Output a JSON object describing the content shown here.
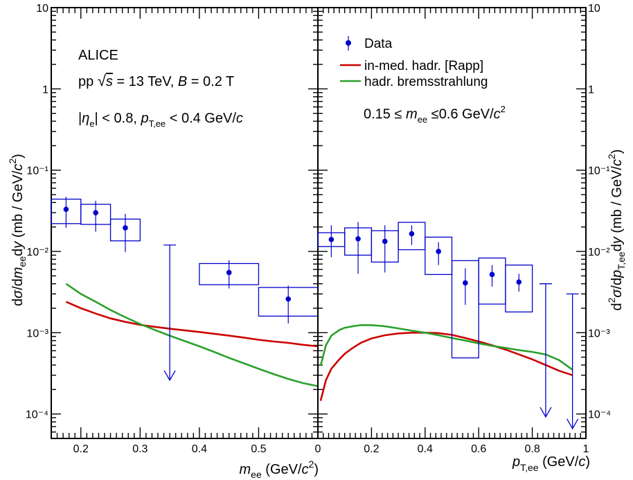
{
  "chart_data": [
    {
      "type": "scatter",
      "panel": "left",
      "title": "",
      "xlabel": "m_ee (GeV/c²)",
      "ylabel": "dσ/dm_ee dy (mb / GeV/c²)",
      "xlim": [
        0.15,
        0.6
      ],
      "ylim": [
        5e-05,
        10
      ],
      "yscale": "log",
      "x_ticks": [
        0.2,
        0.3,
        0.4,
        0.5
      ],
      "annotations": [
        "ALICE",
        "pp √s = 13 TeV, B = 0.2 T",
        "|η_e| < 0.8, p_T,ee < 0.4 GeV/c"
      ],
      "series": [
        {
          "name": "Data",
          "color": "#0000cc",
          "points": [
            {
              "x": 0.175,
              "y": 0.033,
              "stat_low": 0.0195,
              "stat_high": 0.047,
              "sys_low": 0.022,
              "sys_high": 0.044,
              "bin": [
                0.15,
                0.2
              ]
            },
            {
              "x": 0.225,
              "y": 0.03,
              "stat_low": 0.0175,
              "stat_high": 0.042,
              "sys_low": 0.0215,
              "sys_high": 0.038,
              "bin": [
                0.2,
                0.25
              ]
            },
            {
              "x": 0.275,
              "y": 0.0195,
              "stat_low": 0.0098,
              "stat_high": 0.029,
              "sys_low": 0.0135,
              "sys_high": 0.025,
              "bin": [
                0.25,
                0.3
              ]
            },
            {
              "x": 0.45,
              "y": 0.0055,
              "stat_low": 0.0035,
              "stat_high": 0.0078,
              "sys_low": 0.0039,
              "sys_high": 0.0071,
              "bin": [
                0.4,
                0.5
              ]
            },
            {
              "x": 0.55,
              "y": 0.0026,
              "stat_low": 0.0013,
              "stat_high": 0.0038,
              "sys_low": 0.0016,
              "sys_high": 0.0036,
              "bin": [
                0.5,
                0.6
              ]
            }
          ],
          "upper_limits": [
            {
              "x": 0.35,
              "y_top": 0.012,
              "y_arrow": 0.00026
            }
          ]
        },
        {
          "name": "in-med. hadr. [Rapp]",
          "color": "#cc0000",
          "x": [
            0.175,
            0.2,
            0.225,
            0.25,
            0.275,
            0.3,
            0.325,
            0.35,
            0.375,
            0.4,
            0.425,
            0.45,
            0.475,
            0.5,
            0.525,
            0.55,
            0.575,
            0.6
          ],
          "values": [
            0.0024,
            0.002,
            0.00172,
            0.0015,
            0.00136,
            0.00125,
            0.00118,
            0.00112,
            0.00107,
            0.00102,
            0.00097,
            0.00092,
            0.00087,
            0.00082,
            0.00078,
            0.00075,
            0.00071,
            0.00068
          ]
        },
        {
          "name": "hadr. bremsstrahlung",
          "color": "#2aa02a",
          "x": [
            0.175,
            0.2,
            0.225,
            0.25,
            0.275,
            0.3,
            0.325,
            0.35,
            0.375,
            0.4,
            0.425,
            0.45,
            0.475,
            0.5,
            0.525,
            0.55,
            0.575,
            0.6
          ],
          "values": [
            0.004,
            0.003,
            0.0024,
            0.0019,
            0.00155,
            0.00128,
            0.00108,
            0.00092,
            0.00079,
            0.00068,
            0.00058,
            0.00049,
            0.00042,
            0.00036,
            0.00031,
            0.00027,
            0.00024,
            0.00022
          ]
        }
      ]
    },
    {
      "type": "scatter",
      "panel": "right",
      "title": "",
      "xlabel": "p_T,ee (GeV/c)",
      "ylabel": "d²σ/dp_T,ee dy (mb / GeV/c²)",
      "xlim": [
        0,
        1
      ],
      "ylim": [
        5e-05,
        10
      ],
      "yscale": "log",
      "x_ticks": [
        0,
        0.2,
        0.4,
        0.6,
        0.8,
        1
      ],
      "annotations": [
        "0.15 ≤ m_ee ≤ 0.6 GeV/c²"
      ],
      "series": [
        {
          "name": "Data",
          "color": "#0000cc",
          "points": [
            {
              "x": 0.05,
              "y": 0.014,
              "stat_low": 0.0085,
              "stat_high": 0.021,
              "sys_low": 0.0115,
              "sys_high": 0.017,
              "bin": [
                0.0,
                0.1
              ]
            },
            {
              "x": 0.15,
              "y": 0.0143,
              "stat_low": 0.0053,
              "stat_high": 0.023,
              "sys_low": 0.009,
              "sys_high": 0.0195,
              "bin": [
                0.1,
                0.2
              ]
            },
            {
              "x": 0.25,
              "y": 0.0133,
              "stat_low": 0.0055,
              "stat_high": 0.021,
              "sys_low": 0.0074,
              "sys_high": 0.018,
              "bin": [
                0.2,
                0.3
              ]
            },
            {
              "x": 0.35,
              "y": 0.0165,
              "stat_low": 0.012,
              "stat_high": 0.021,
              "sys_low": 0.0105,
              "sys_high": 0.0228,
              "bin": [
                0.3,
                0.4
              ]
            },
            {
              "x": 0.45,
              "y": 0.01,
              "stat_low": 0.0068,
              "stat_high": 0.013,
              "sys_low": 0.0052,
              "sys_high": 0.015,
              "bin": [
                0.4,
                0.5
              ]
            },
            {
              "x": 0.55,
              "y": 0.0041,
              "stat_low": 0.0022,
              "stat_high": 0.0062,
              "sys_low": 0.00049,
              "sys_high": 0.0077,
              "bin": [
                0.5,
                0.6
              ]
            },
            {
              "x": 0.65,
              "y": 0.0052,
              "stat_low": 0.0037,
              "stat_high": 0.0068,
              "sys_low": 0.00225,
              "sys_high": 0.0083,
              "bin": [
                0.6,
                0.7
              ]
            },
            {
              "x": 0.75,
              "y": 0.0042,
              "stat_low": 0.0032,
              "stat_high": 0.0053,
              "sys_low": 0.0018,
              "sys_high": 0.0068,
              "bin": [
                0.7,
                0.8
              ]
            }
          ],
          "upper_limits": [
            {
              "x": 0.85,
              "y_top": 0.004,
              "y_arrow": 9.2e-05
            },
            {
              "x": 0.95,
              "y_top": 0.003,
              "y_arrow": 6.6e-05
            }
          ]
        },
        {
          "name": "in-med. hadr. [Rapp]",
          "color": "#cc0000",
          "x": [
            0.01,
            0.03,
            0.05,
            0.08,
            0.1,
            0.13,
            0.16,
            0.2,
            0.25,
            0.3,
            0.35,
            0.4,
            0.45,
            0.5,
            0.55,
            0.6,
            0.65,
            0.7,
            0.75,
            0.8,
            0.85,
            0.9,
            0.95
          ],
          "values": [
            0.000145,
            0.00026,
            0.00036,
            0.00047,
            0.00055,
            0.00065,
            0.00075,
            0.00085,
            0.00093,
            0.00098,
            0.001,
            0.001,
            0.00099,
            0.00094,
            0.00086,
            0.00078,
            0.0007,
            0.00062,
            0.00054,
            0.00047,
            0.0004,
            0.00034,
            0.0003
          ]
        },
        {
          "name": "hadr. bremsstrahlung",
          "color": "#2aa02a",
          "x": [
            0.01,
            0.03,
            0.05,
            0.08,
            0.1,
            0.13,
            0.16,
            0.2,
            0.25,
            0.3,
            0.35,
            0.4,
            0.45,
            0.5,
            0.55,
            0.6,
            0.65,
            0.7,
            0.75,
            0.8,
            0.85,
            0.9,
            0.95
          ],
          "values": [
            0.00039,
            0.0007,
            0.00092,
            0.00108,
            0.00115,
            0.0012,
            0.00124,
            0.00124,
            0.0012,
            0.00113,
            0.00106,
            0.001,
            0.00093,
            0.00086,
            0.0008,
            0.00074,
            0.00069,
            0.00065,
            0.00061,
            0.00058,
            0.00054,
            0.00046,
            0.00035
          ]
        }
      ]
    }
  ],
  "y_tick_labels": [
    "10⁻⁴",
    "10⁻³",
    "10⁻²",
    "10⁻¹",
    "1",
    "10"
  ],
  "legend": [
    {
      "label": "Data",
      "color": "#0000cc",
      "kind": "marker"
    },
    {
      "label": "in-med. hadr. [Rapp]",
      "color": "#cc0000",
      "kind": "line"
    },
    {
      "label": "hadr. bremsstrahlung",
      "color": "#2aa02a",
      "kind": "line"
    }
  ]
}
